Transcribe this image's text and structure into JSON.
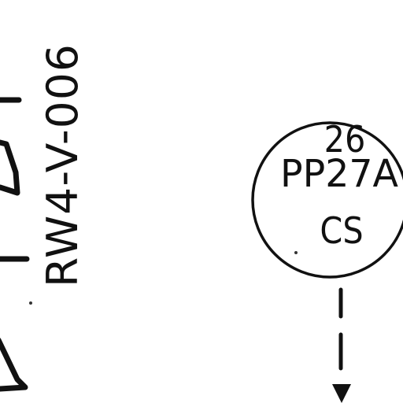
{
  "diagram": {
    "valve_tag": "RW4-V-006",
    "instrument": {
      "number": "26",
      "tag": "PP27A",
      "function": "CS"
    }
  },
  "colors": {
    "ink": "#111111",
    "paper": "#ffffff"
  }
}
